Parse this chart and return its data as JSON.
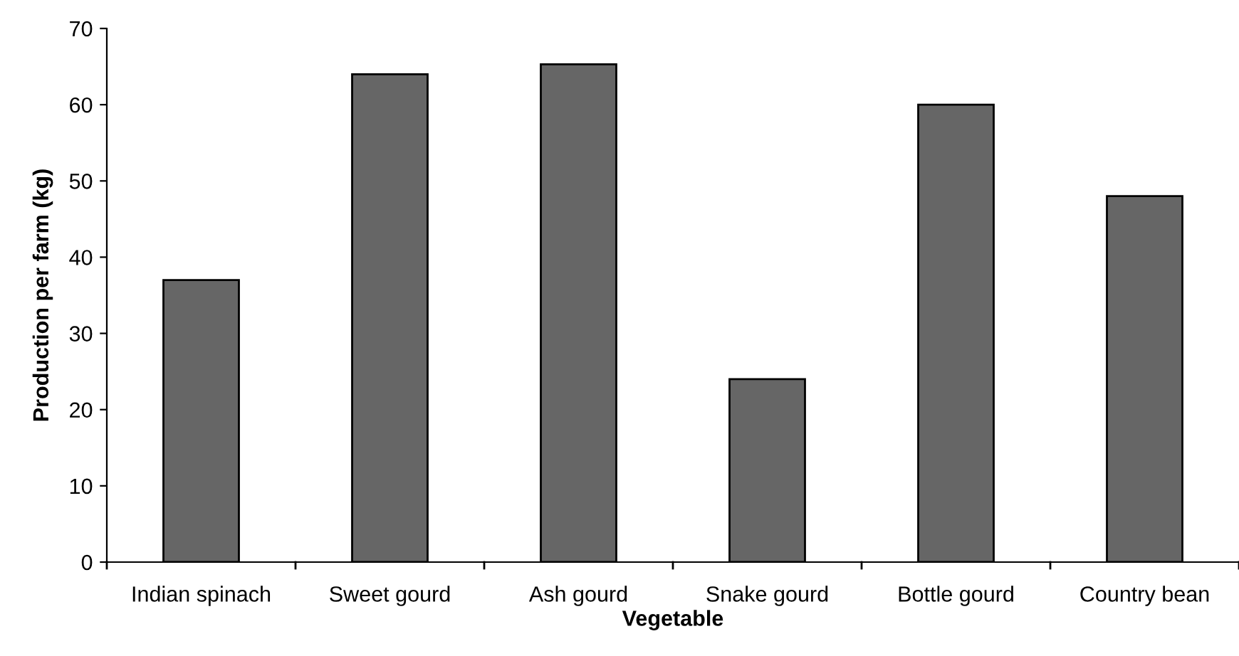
{
  "chart_data": {
    "type": "bar",
    "xlabel": "Vegetable",
    "ylabel": "Production per farm (kg)",
    "categories": [
      "Indian spinach",
      "Sweet gourd",
      "Ash gourd",
      "Snake gourd",
      "Bottle gourd",
      "Country bean"
    ],
    "values": [
      37,
      64,
      65.3,
      24,
      60,
      48
    ],
    "color": "#666666",
    "ylim": [
      0,
      70
    ],
    "yticks": [
      0,
      10,
      20,
      30,
      40,
      50,
      60,
      70
    ],
    "grid": false,
    "legend": false
  }
}
